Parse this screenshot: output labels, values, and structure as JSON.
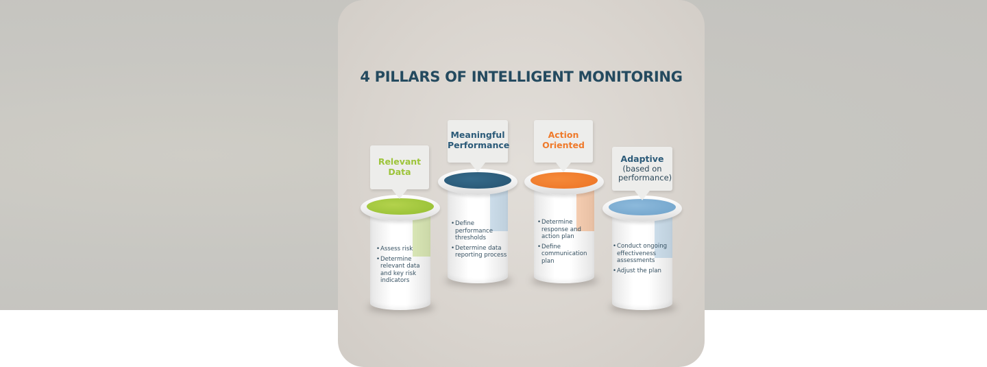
{
  "title": "4 PILLARS OF INTELLIGENT MONITORING",
  "colors": {
    "title": "#244a5f",
    "green": "#9dc43a",
    "navy": "#2b5a78",
    "orange": "#ef7a2b",
    "blue": "#78a9cf"
  },
  "pillars": [
    {
      "heading": "Relevant Data",
      "heading_lines": [
        "Relevant",
        "Data"
      ],
      "subheading": "",
      "accent": "#9dc43a",
      "bullets": [
        "Assess risk",
        "Determine relevant data and key risk indicators"
      ]
    },
    {
      "heading": "Meaningful Performance",
      "heading_lines": [
        "Meaningful",
        "Performance"
      ],
      "subheading": "",
      "accent": "#2b5a78",
      "bullets": [
        "Define performance thresholds",
        "Determine data reporting process"
      ]
    },
    {
      "heading": "Action Oriented",
      "heading_lines": [
        "Action",
        "Oriented"
      ],
      "subheading": "",
      "accent": "#ef7a2b",
      "bullets": [
        "Determine response and action plan",
        "Define communication plan"
      ]
    },
    {
      "heading": "Adaptive",
      "heading_lines": [
        "Adaptive"
      ],
      "subheading": "(based on performance)",
      "accent": "#78a9cf",
      "bullets": [
        "Conduct ongoing effectiveness assessments",
        "Adjust the plan"
      ]
    }
  ]
}
